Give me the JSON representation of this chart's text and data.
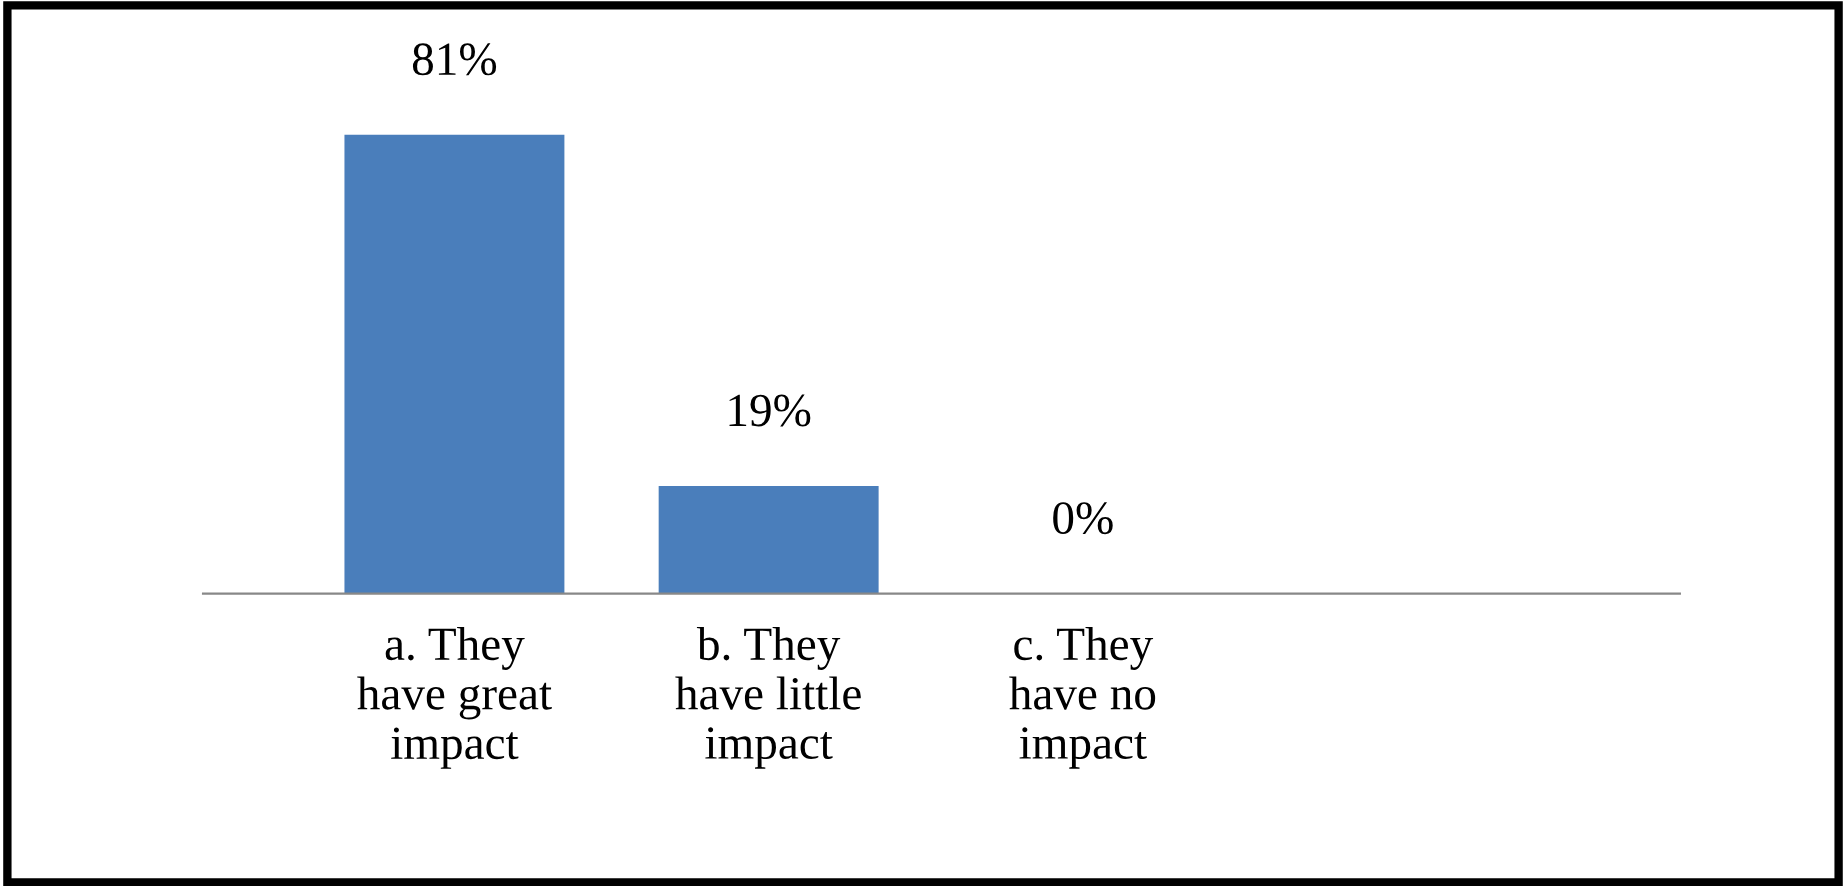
{
  "chart_data": {
    "type": "bar",
    "categories": [
      "a. They\nhave great\nimpact",
      "b. They\nhave little\nimpact",
      "c. They\nhave no\nimpact"
    ],
    "values": [
      81,
      19,
      0
    ],
    "value_labels": [
      "81%",
      "19%",
      "0%"
    ],
    "color": "#4a7ebb",
    "grid": false,
    "legend": false
  }
}
